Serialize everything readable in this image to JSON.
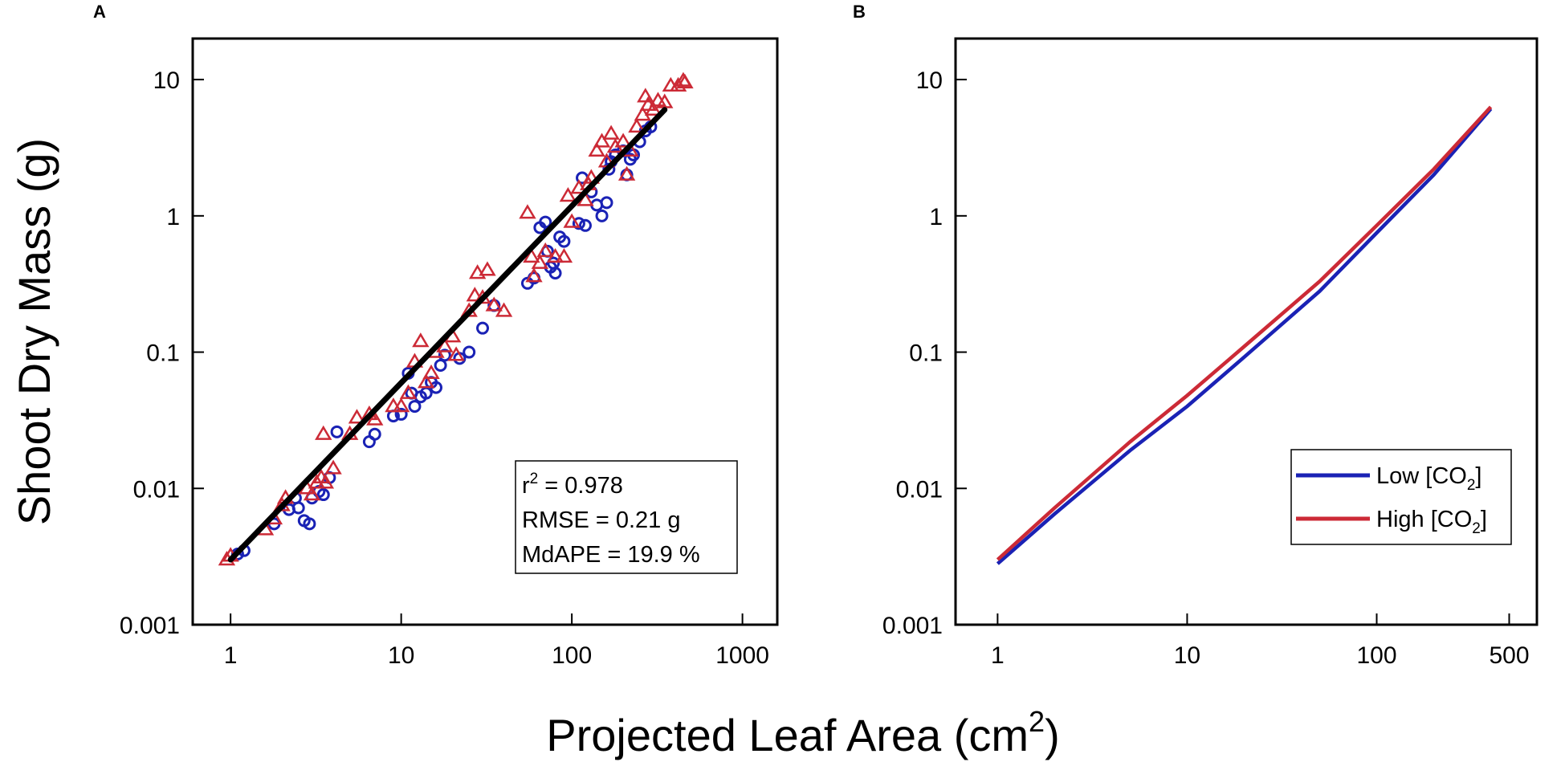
{
  "figure": {
    "ylabel": "Shoot Dry Mass (g)",
    "xlabel_main": "Projected Leaf Area (cm",
    "xlabel_sup": "2",
    "xlabel_end": ")"
  },
  "chart_data": [
    {
      "panel": "A",
      "type": "scatter",
      "xscale": "log",
      "yscale": "log",
      "xlim": [
        0.6,
        1600
      ],
      "ylim": [
        0.001,
        20
      ],
      "xticks": [
        1,
        10,
        100,
        1000
      ],
      "xtick_labels": [
        "1",
        "10",
        "100",
        "1000"
      ],
      "yticks": [
        0.001,
        0.01,
        0.1,
        1,
        10
      ],
      "ytick_labels": [
        "0.001",
        "0.01",
        "0.1",
        "1",
        "10"
      ],
      "colors": {
        "low": "#1a22b5",
        "high": "#cc2a36",
        "fit": "#000000"
      },
      "stats": {
        "r2_prefix": "r",
        "r2_sup": "2",
        "r2_value": " = 0.978",
        "rmse": "RMSE = 0.21 g",
        "mdape": "MdAPE = 19.9 %"
      },
      "fit": {
        "x": [
          1.0,
          350
        ],
        "y": [
          0.003,
          6.0
        ]
      },
      "series": [
        {
          "name": "Low [CO2]",
          "marker": "circle",
          "points": [
            [
              1.1,
              0.0033
            ],
            [
              1.2,
              0.0035
            ],
            [
              1.8,
              0.0055
            ],
            [
              2.2,
              0.007
            ],
            [
              2.4,
              0.0085
            ],
            [
              2.5,
              0.0072
            ],
            [
              2.7,
              0.0058
            ],
            [
              2.9,
              0.0055
            ],
            [
              3.0,
              0.0085
            ],
            [
              3.3,
              0.0095
            ],
            [
              3.5,
              0.009
            ],
            [
              3.8,
              0.012
            ],
            [
              4.2,
              0.026
            ],
            [
              6.5,
              0.022
            ],
            [
              7.0,
              0.025
            ],
            [
              9.0,
              0.034
            ],
            [
              10.0,
              0.035
            ],
            [
              11.0,
              0.07
            ],
            [
              11.5,
              0.05
            ],
            [
              12.0,
              0.04
            ],
            [
              13.0,
              0.047
            ],
            [
              14.0,
              0.05
            ],
            [
              15.0,
              0.06
            ],
            [
              16.0,
              0.055
            ],
            [
              17.0,
              0.08
            ],
            [
              18.0,
              0.095
            ],
            [
              22.0,
              0.09
            ],
            [
              25.0,
              0.1
            ],
            [
              30.0,
              0.15
            ],
            [
              35.0,
              0.22
            ],
            [
              55.0,
              0.32
            ],
            [
              60.0,
              0.35
            ],
            [
              65.0,
              0.82
            ],
            [
              70.0,
              0.9
            ],
            [
              72.0,
              0.55
            ],
            [
              75.0,
              0.42
            ],
            [
              78.0,
              0.45
            ],
            [
              80.0,
              0.38
            ],
            [
              85.0,
              0.7
            ],
            [
              90.0,
              0.65
            ],
            [
              110.0,
              0.88
            ],
            [
              115.0,
              1.9
            ],
            [
              120.0,
              0.85
            ],
            [
              130.0,
              1.5
            ],
            [
              140.0,
              1.2
            ],
            [
              150.0,
              1.0
            ],
            [
              160.0,
              1.25
            ],
            [
              165.0,
              2.2
            ],
            [
              170.0,
              2.5
            ],
            [
              180.0,
              2.8
            ],
            [
              200.0,
              3.0
            ],
            [
              210.0,
              2.0
            ],
            [
              220.0,
              2.6
            ],
            [
              230.0,
              2.8
            ],
            [
              250.0,
              3.5
            ],
            [
              270.0,
              4.2
            ],
            [
              290.0,
              4.5
            ]
          ]
        },
        {
          "name": "High [CO2]",
          "marker": "triangle",
          "points": [
            [
              0.95,
              0.003
            ],
            [
              1.0,
              0.0032
            ],
            [
              1.6,
              0.005
            ],
            [
              1.8,
              0.006
            ],
            [
              2.0,
              0.0075
            ],
            [
              2.1,
              0.0085
            ],
            [
              2.8,
              0.01
            ],
            [
              3.0,
              0.009
            ],
            [
              3.2,
              0.011
            ],
            [
              3.4,
              0.012
            ],
            [
              3.5,
              0.025
            ],
            [
              3.6,
              0.011
            ],
            [
              4.0,
              0.014
            ],
            [
              5.0,
              0.025
            ],
            [
              5.5,
              0.033
            ],
            [
              6.5,
              0.035
            ],
            [
              7.0,
              0.032
            ],
            [
              9.0,
              0.04
            ],
            [
              10.0,
              0.04
            ],
            [
              11.0,
              0.05
            ],
            [
              12.0,
              0.085
            ],
            [
              13.0,
              0.12
            ],
            [
              14.0,
              0.06
            ],
            [
              15.0,
              0.07
            ],
            [
              16.0,
              0.1
            ],
            [
              18.0,
              0.11
            ],
            [
              20.0,
              0.13
            ],
            [
              21.0,
              0.095
            ],
            [
              25.0,
              0.2
            ],
            [
              27.0,
              0.26
            ],
            [
              28.0,
              0.38
            ],
            [
              30.0,
              0.25
            ],
            [
              32.0,
              0.4
            ],
            [
              35.0,
              0.22
            ],
            [
              40.0,
              0.2
            ],
            [
              55.0,
              1.05
            ],
            [
              58.0,
              0.5
            ],
            [
              60.0,
              0.36
            ],
            [
              65.0,
              0.45
            ],
            [
              70.0,
              0.55
            ],
            [
              80.0,
              0.5
            ],
            [
              90.0,
              0.5
            ],
            [
              95.0,
              1.4
            ],
            [
              100.0,
              0.9
            ],
            [
              110.0,
              1.6
            ],
            [
              120.0,
              1.3
            ],
            [
              125.0,
              1.7
            ],
            [
              130.0,
              1.9
            ],
            [
              140.0,
              3.0
            ],
            [
              150.0,
              3.5
            ],
            [
              160.0,
              2.5
            ],
            [
              170.0,
              4.0
            ],
            [
              180.0,
              3.2
            ],
            [
              200.0,
              3.5
            ],
            [
              210.0,
              2.0
            ],
            [
              220.0,
              3.0
            ],
            [
              240.0,
              4.5
            ],
            [
              260.0,
              5.5
            ],
            [
              270.0,
              7.5
            ],
            [
              280.0,
              6.5
            ],
            [
              300.0,
              6.0
            ],
            [
              320.0,
              7.0
            ],
            [
              350.0,
              6.8
            ],
            [
              380.0,
              9.0
            ],
            [
              420.0,
              9.0
            ],
            [
              450.0,
              9.8
            ],
            [
              460.0,
              9.5
            ]
          ]
        }
      ]
    },
    {
      "panel": "B",
      "type": "line",
      "xscale": "log",
      "yscale": "log",
      "xlim": [
        0.6,
        700
      ],
      "ylim": [
        0.001,
        20
      ],
      "xticks": [
        1,
        10,
        100,
        500
      ],
      "xtick_labels": [
        "1",
        "10",
        "100",
        "500"
      ],
      "yticks": [
        0.001,
        0.01,
        0.1,
        1,
        10
      ],
      "ytick_labels": [
        "0.001",
        "0.01",
        "0.1",
        "1",
        "10"
      ],
      "legend": {
        "low_label": "Low [CO",
        "low_sub": "2",
        "low_end": "]",
        "high_label": "High [CO",
        "high_sub": "2",
        "high_end": "]"
      },
      "series": [
        {
          "name": "Low [CO2]",
          "color": "#1a22b5",
          "x": [
            1,
            2,
            5,
            10,
            20,
            50,
            100,
            200,
            400
          ],
          "y": [
            0.0028,
            0.0065,
            0.019,
            0.04,
            0.092,
            0.28,
            0.75,
            2.0,
            6.1
          ]
        },
        {
          "name": "High [CO2]",
          "color": "#cc2a36",
          "x": [
            1,
            2,
            5,
            10,
            20,
            50,
            100,
            200,
            400
          ],
          "y": [
            0.003,
            0.0072,
            0.022,
            0.048,
            0.11,
            0.33,
            0.85,
            2.2,
            6.3
          ]
        }
      ]
    }
  ]
}
